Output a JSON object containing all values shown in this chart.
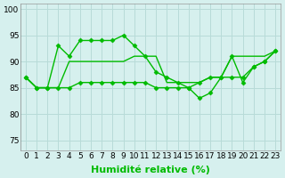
{
  "background_color": "#d6f0ee",
  "grid_color": "#b8dbd8",
  "line_color": "#00bb00",
  "xlabel": "Humidité relative (%)",
  "xlabel_fontsize": 8,
  "tick_fontsize": 6.5,
  "xlim": [
    -0.5,
    23.5
  ],
  "ylim": [
    73,
    101
  ],
  "yticks": [
    75,
    80,
    85,
    90,
    95,
    100
  ],
  "xticks": [
    0,
    1,
    2,
    3,
    4,
    5,
    6,
    7,
    8,
    9,
    10,
    11,
    12,
    13,
    14,
    15,
    16,
    17,
    18,
    19,
    20,
    21,
    22,
    23
  ],
  "series": [
    {
      "x": [
        0,
        1,
        2,
        3,
        4,
        5,
        6,
        7,
        8,
        9,
        10,
        11,
        12,
        13,
        14,
        15,
        16,
        17,
        18,
        19,
        20,
        21,
        22,
        23
      ],
      "y": [
        87,
        85,
        85,
        93,
        91,
        94,
        94,
        94,
        94,
        95,
        93,
        91,
        88,
        87,
        86,
        85,
        86,
        87,
        87,
        91,
        86,
        89,
        90,
        92
      ],
      "marker": "D",
      "markersize": 2.5,
      "linewidth": 1.0
    },
    {
      "x": [
        0,
        1,
        2,
        3,
        4,
        5,
        6,
        7,
        8,
        9,
        10,
        11,
        12,
        13,
        14,
        15,
        16,
        17,
        18,
        19,
        20,
        21,
        22,
        23
      ],
      "y": [
        87,
        85,
        85,
        85,
        90,
        90,
        90,
        90,
        90,
        90,
        91,
        91,
        91,
        86,
        86,
        86,
        86,
        87,
        87,
        91,
        91,
        91,
        91,
        92
      ],
      "marker": null,
      "markersize": 0,
      "linewidth": 1.0
    },
    {
      "x": [
        0,
        1,
        2,
        3,
        4,
        5,
        6,
        7,
        8,
        9,
        10,
        11,
        12,
        13,
        14,
        15,
        16,
        17,
        18,
        19,
        20,
        21,
        22,
        23
      ],
      "y": [
        87,
        85,
        85,
        85,
        85,
        86,
        86,
        86,
        86,
        86,
        86,
        86,
        85,
        85,
        85,
        85,
        83,
        84,
        87,
        87,
        87,
        89,
        90,
        92
      ],
      "marker": "D",
      "markersize": 2.5,
      "linewidth": 1.0
    }
  ]
}
